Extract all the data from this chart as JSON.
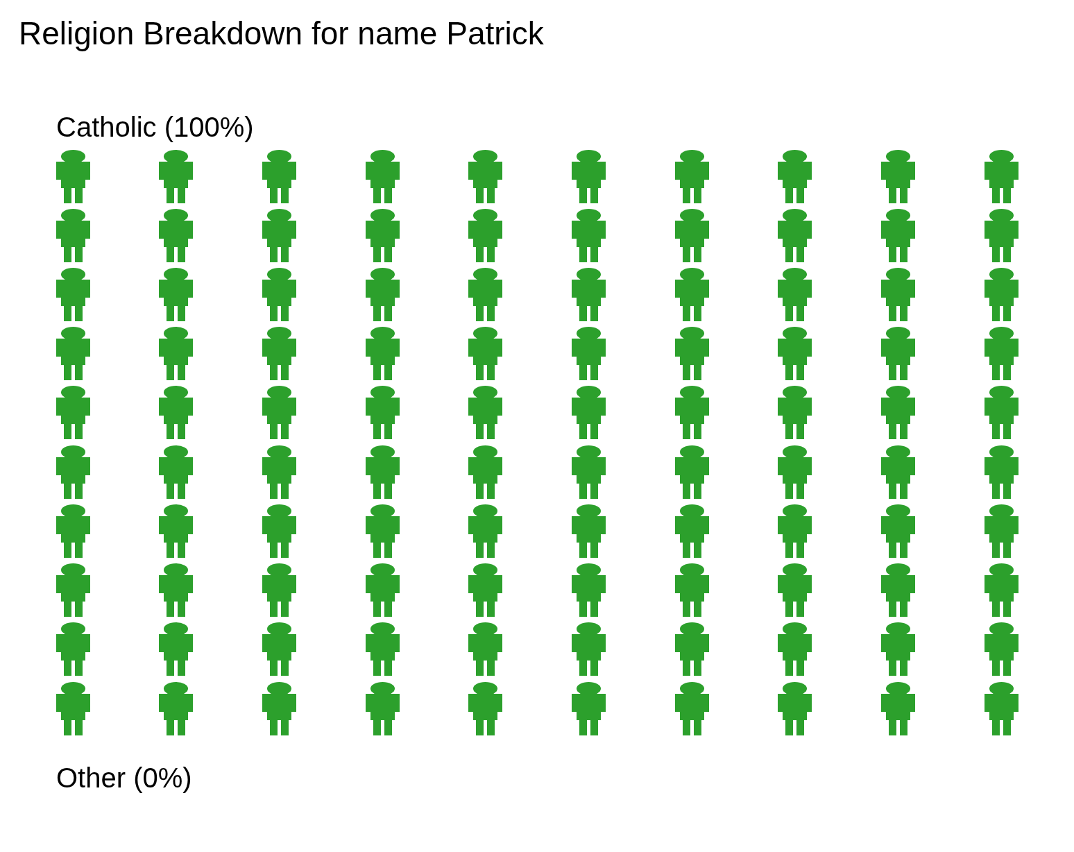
{
  "chart_data": {
    "type": "other",
    "title": "Religion Breakdown for name Patrick",
    "categories": [
      "Catholic",
      "Other"
    ],
    "values": [
      100,
      0
    ],
    "value_labels": [
      "(100%)",
      "(0%)"
    ],
    "colors": [
      "#2ca02c",
      null
    ]
  }
}
